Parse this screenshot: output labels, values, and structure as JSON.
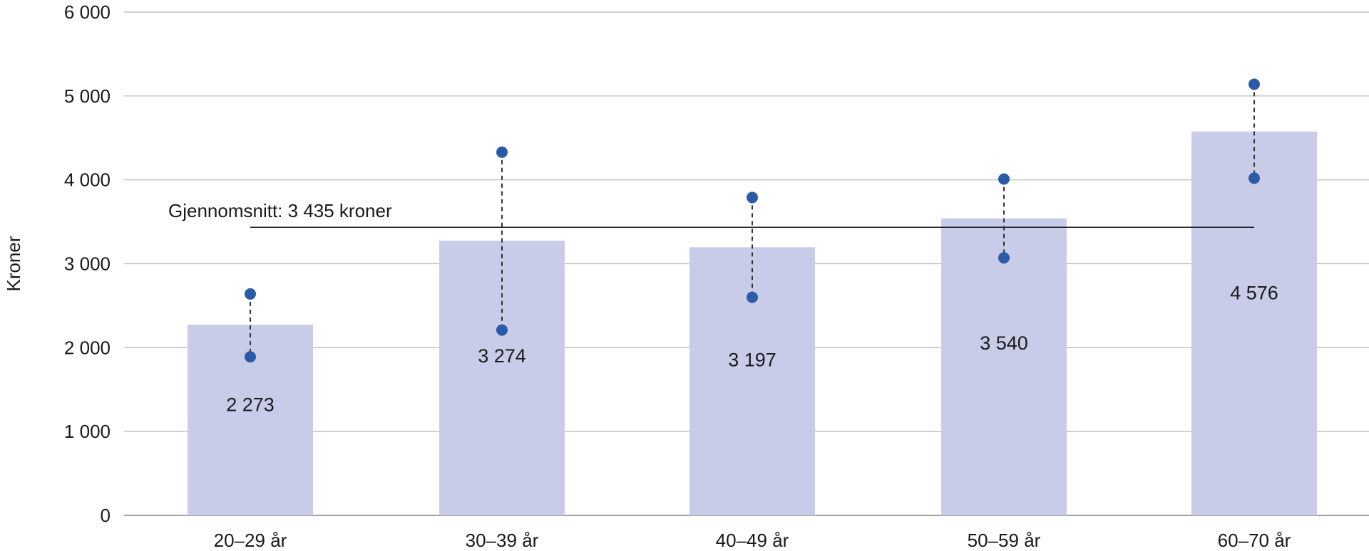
{
  "chart_data": {
    "type": "bar",
    "ylabel": "Kroner",
    "xlabel": "",
    "ylim": [
      0,
      6000
    ],
    "yticks": [
      0,
      1000,
      2000,
      3000,
      4000,
      5000,
      6000
    ],
    "ytick_labels": [
      "0",
      "1 000",
      "2 000",
      "3 000",
      "4 000",
      "5 000",
      "6 000"
    ],
    "grid": "horizontal",
    "categories": [
      "20–29 år",
      "30–39 år",
      "40–49 år",
      "50–59 år",
      "60–70 år"
    ],
    "values": [
      2273,
      3274,
      3197,
      3540,
      4576
    ],
    "value_labels": [
      "2 273",
      "3 274",
      "3 197",
      "3 540",
      "4 576"
    ],
    "intervals": [
      {
        "low": 1890,
        "high": 2640
      },
      {
        "low": 2210,
        "high": 4330
      },
      {
        "low": 2600,
        "high": 3790
      },
      {
        "low": 3070,
        "high": 4010
      },
      {
        "low": 4020,
        "high": 5140
      }
    ],
    "average": {
      "value": 3435,
      "label": "Gjennomsnitt: 3 435 kroner"
    },
    "colors": {
      "bar": "#c8cce9",
      "point": "#2b5ba8",
      "grid": "#b3b3b3",
      "axis": "#808080",
      "line": "#1a1a1a"
    }
  }
}
